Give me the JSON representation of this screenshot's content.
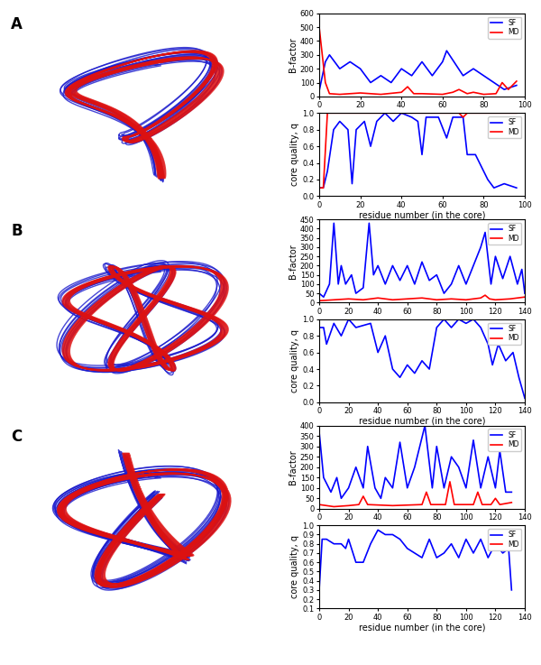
{
  "panels": [
    "A",
    "B",
    "C"
  ],
  "chart_data": [
    {
      "type": "line",
      "ylabel": "B-factor",
      "legend": "upper right",
      "xlim": [
        0,
        100
      ],
      "xticks": [
        0,
        20,
        40,
        60,
        80,
        100
      ],
      "ylim": [
        0,
        600
      ],
      "yticks": [
        0,
        100,
        200,
        300,
        400,
        500,
        600
      ],
      "series": [
        {
          "name": "SF",
          "color": "blue",
          "x": [
            0,
            3,
            5,
            10,
            15,
            20,
            25,
            30,
            35,
            40,
            45,
            50,
            55,
            60,
            62,
            70,
            75,
            80,
            85,
            90,
            96
          ],
          "values": [
            40,
            250,
            300,
            200,
            250,
            200,
            100,
            150,
            100,
            200,
            150,
            250,
            150,
            250,
            330,
            150,
            200,
            150,
            100,
            50,
            80
          ]
        },
        {
          "name": "MD",
          "color": "red",
          "x": [
            0,
            3,
            5,
            10,
            20,
            30,
            40,
            43,
            46,
            50,
            60,
            65,
            68,
            72,
            75,
            80,
            86,
            89,
            92,
            96
          ],
          "values": [
            500,
            100,
            20,
            15,
            25,
            15,
            30,
            70,
            20,
            20,
            15,
            30,
            50,
            20,
            30,
            15,
            20,
            100,
            50,
            110
          ]
        }
      ]
    },
    {
      "type": "line",
      "ylabel": "core quality, q",
      "xlabel": "residue number (in the core)",
      "legend": "upper right",
      "xlim": [
        0,
        100
      ],
      "xticks": [
        0,
        20,
        40,
        60,
        80,
        100
      ],
      "ylim": [
        0.0,
        1.0
      ],
      "yticks": [
        {
          "value": 0.0,
          "label": "0.0"
        },
        {
          "value": 0.2,
          "label": "0.2"
        },
        {
          "value": 0.4,
          "label": "0.4"
        },
        {
          "value": 0.6,
          "label": "0.6"
        },
        {
          "value": 0.8,
          "label": "0.8"
        },
        {
          "value": 1.0,
          "label": "1.0"
        }
      ],
      "series": [
        {
          "name": "SF",
          "color": "blue",
          "x": [
            0,
            2,
            4,
            7,
            10,
            14,
            16,
            18,
            22,
            25,
            28,
            32,
            36,
            40,
            45,
            48,
            50,
            52,
            58,
            62,
            65,
            70,
            72,
            76,
            78,
            82,
            85,
            90,
            96
          ],
          "values": [
            0.1,
            0.1,
            0.3,
            0.8,
            0.9,
            0.8,
            0.15,
            0.8,
            0.9,
            0.6,
            0.9,
            1.0,
            0.9,
            1.0,
            0.95,
            0.9,
            0.5,
            0.95,
            0.95,
            0.7,
            0.95,
            0.95,
            0.5,
            0.5,
            0.4,
            0.2,
            0.1,
            0.15,
            0.1
          ]
        },
        {
          "name": "MD",
          "color": "red",
          "x": [
            0,
            2,
            4,
            68,
            70,
            72,
            96
          ],
          "values": [
            0.1,
            0.1,
            1.0,
            1.0,
            0.95,
            1.0,
            1.0
          ]
        }
      ]
    },
    {
      "type": "line",
      "ylabel": "B-factor",
      "legend": "upper right",
      "xlim": [
        0,
        140
      ],
      "xticks": [
        0,
        20,
        40,
        60,
        80,
        100,
        120,
        140
      ],
      "ylim": [
        0,
        450
      ],
      "yticks": [
        0,
        50,
        100,
        150,
        200,
        250,
        300,
        350,
        400,
        450
      ],
      "series": [
        {
          "name": "SF",
          "color": "blue",
          "x": [
            0,
            3,
            7,
            10,
            13,
            15,
            18,
            22,
            25,
            30,
            34,
            37,
            40,
            45,
            50,
            55,
            60,
            65,
            70,
            75,
            80,
            85,
            90,
            95,
            100,
            105,
            110,
            113,
            117,
            120,
            125,
            130,
            135,
            138,
            140
          ],
          "values": [
            50,
            30,
            100,
            430,
            100,
            200,
            100,
            150,
            50,
            80,
            430,
            150,
            200,
            100,
            200,
            120,
            200,
            100,
            220,
            120,
            150,
            50,
            100,
            200,
            100,
            200,
            300,
            380,
            100,
            250,
            130,
            250,
            100,
            180,
            50
          ]
        },
        {
          "name": "MD",
          "color": "red",
          "x": [
            0,
            10,
            20,
            30,
            40,
            50,
            60,
            70,
            80,
            90,
            100,
            110,
            113,
            116,
            120,
            130,
            140
          ],
          "values": [
            10,
            15,
            20,
            15,
            25,
            15,
            20,
            25,
            15,
            20,
            15,
            25,
            40,
            20,
            15,
            20,
            30
          ]
        }
      ]
    },
    {
      "type": "line",
      "ylabel": "core quality, q",
      "xlabel": "residue number (in the core)",
      "legend": "upper right",
      "xlim": [
        0,
        140
      ],
      "xticks": [
        0,
        20,
        40,
        60,
        80,
        100,
        120,
        140
      ],
      "ylim": [
        0.0,
        1.0
      ],
      "yticks": [
        {
          "value": 0.0,
          "label": "0.0"
        },
        {
          "value": 0.2,
          "label": "0.2"
        },
        {
          "value": 0.4,
          "label": "0.4"
        },
        {
          "value": 0.6,
          "label": "0.6"
        },
        {
          "value": 0.8,
          "label": "0.8"
        },
        {
          "value": 1.0,
          "label": "1.0"
        }
      ],
      "series": [
        {
          "name": "SF",
          "color": "blue",
          "x": [
            0,
            3,
            5,
            10,
            15,
            20,
            25,
            35,
            40,
            45,
            50,
            55,
            60,
            65,
            70,
            75,
            80,
            85,
            90,
            95,
            100,
            105,
            110,
            115,
            118,
            122,
            127,
            132,
            136,
            140
          ],
          "values": [
            0.9,
            0.9,
            0.7,
            0.95,
            0.8,
            1.0,
            0.9,
            0.95,
            0.6,
            0.8,
            0.4,
            0.3,
            0.45,
            0.35,
            0.5,
            0.4,
            0.9,
            1.0,
            0.9,
            1.0,
            0.95,
            1.0,
            0.9,
            0.7,
            0.45,
            0.7,
            0.5,
            0.6,
            0.3,
            0.05
          ]
        },
        {
          "name": "MD",
          "color": "red",
          "x": [
            0,
            140
          ],
          "values": [
            1.0,
            1.0
          ]
        }
      ]
    },
    {
      "type": "line",
      "ylabel": "B-factor",
      "legend": "upper right",
      "xlim": [
        0,
        140
      ],
      "xticks": [
        0,
        20,
        40,
        60,
        80,
        100,
        120,
        140
      ],
      "ylim": [
        0,
        400
      ],
      "yticks": [
        0,
        50,
        100,
        150,
        200,
        250,
        300,
        350,
        400
      ],
      "series": [
        {
          "name": "SF",
          "color": "blue",
          "x": [
            0,
            3,
            8,
            12,
            15,
            20,
            25,
            30,
            33,
            38,
            42,
            45,
            50,
            55,
            60,
            65,
            72,
            77,
            80,
            85,
            90,
            95,
            100,
            105,
            110,
            115,
            120,
            123,
            127,
            131
          ],
          "values": [
            370,
            150,
            80,
            150,
            50,
            100,
            200,
            100,
            300,
            100,
            50,
            150,
            100,
            320,
            100,
            200,
            400,
            100,
            300,
            100,
            250,
            200,
            100,
            330,
            100,
            250,
            100,
            280,
            80,
            80
          ]
        },
        {
          "name": "MD",
          "color": "red",
          "x": [
            0,
            10,
            20,
            27,
            30,
            33,
            50,
            70,
            73,
            76,
            86,
            89,
            92,
            105,
            108,
            111,
            117,
            120,
            123,
            131
          ],
          "values": [
            20,
            10,
            15,
            20,
            60,
            20,
            15,
            20,
            80,
            20,
            20,
            130,
            20,
            20,
            80,
            20,
            20,
            50,
            20,
            30
          ]
        }
      ]
    },
    {
      "type": "line",
      "ylabel": "core quality, q",
      "xlabel": "residue number (in the core)",
      "legend": "upper right",
      "xlim": [
        0,
        140
      ],
      "xticks": [
        0,
        20,
        40,
        60,
        80,
        100,
        120,
        140
      ],
      "ylim": [
        0.1,
        1.0
      ],
      "yticks": [
        {
          "value": 0.1,
          "label": "0.1"
        },
        {
          "value": 0.2,
          "label": "0.2"
        },
        {
          "value": 0.3,
          "label": "0.3"
        },
        {
          "value": 0.4,
          "label": "0.4"
        },
        {
          "value": 0.5,
          "label": "0.5"
        },
        {
          "value": 0.6,
          "label": "0.6"
        },
        {
          "value": 0.7,
          "label": "0.7"
        },
        {
          "value": 0.8,
          "label": "0.8"
        },
        {
          "value": 0.9,
          "label": "0.9"
        },
        {
          "value": 1.0,
          "label": "1.0"
        }
      ],
      "series": [
        {
          "name": "SF",
          "color": "blue",
          "x": [
            0,
            2,
            5,
            10,
            15,
            18,
            20,
            25,
            30,
            35,
            40,
            45,
            50,
            55,
            60,
            65,
            70,
            75,
            80,
            85,
            90,
            95,
            100,
            105,
            110,
            115,
            120,
            125,
            129,
            131
          ],
          "values": [
            0.3,
            0.85,
            0.85,
            0.8,
            0.8,
            0.75,
            0.85,
            0.6,
            0.6,
            0.8,
            0.95,
            0.9,
            0.9,
            0.85,
            0.75,
            0.7,
            0.65,
            0.85,
            0.65,
            0.7,
            0.8,
            0.65,
            0.85,
            0.7,
            0.85,
            0.65,
            0.8,
            0.7,
            0.75,
            0.3
          ]
        },
        {
          "name": "MD",
          "color": "red",
          "x": [
            0,
            131
          ],
          "values": [
            1.0,
            1.0
          ]
        }
      ]
    }
  ]
}
